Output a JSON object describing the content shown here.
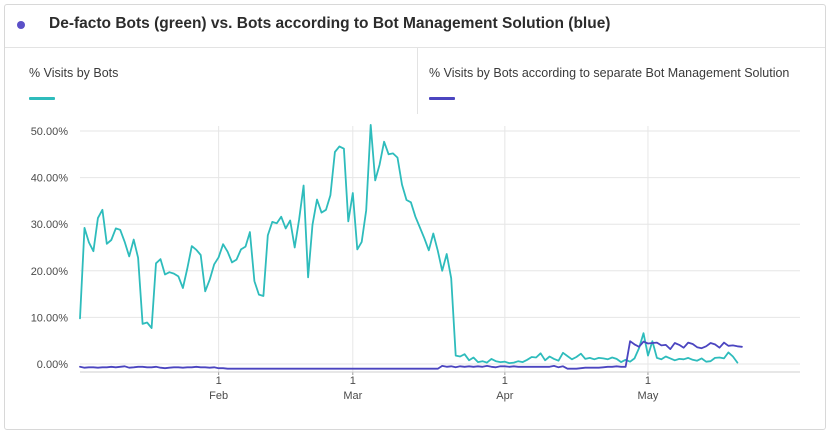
{
  "header": {
    "title": "De-facto Bots (green) vs. Bots according to Bot Management Solution (blue)",
    "dot_color": "#5b50c8"
  },
  "legend": [
    {
      "label": "% Visits by Bots",
      "color": "#2ebcbc"
    },
    {
      "label": "% Visits by Bots according to separate Bot Management Solution",
      "color": "#4b45c0"
    }
  ],
  "chart_data": {
    "type": "line",
    "y_ticks": [
      "50.00%",
      "40.00%",
      "30.00%",
      "20.00%",
      "10.00%",
      "0.00%"
    ],
    "y_tick_values": [
      50,
      40,
      30,
      20,
      10,
      0
    ],
    "ylim": [
      -1.5,
      52
    ],
    "x_range": [
      0,
      161
    ],
    "x_ticks": [
      {
        "x": 31,
        "day": "1",
        "month": "Feb"
      },
      {
        "x": 61,
        "day": "1",
        "month": "Mar"
      },
      {
        "x": 95,
        "day": "1",
        "month": "Apr"
      },
      {
        "x": 127,
        "day": "1",
        "month": "May"
      }
    ],
    "grid": true,
    "series": [
      {
        "name": "% Visits by Bots",
        "color": "#2ebcbc",
        "values": [
          9.8,
          29.2,
          26.1,
          24.2,
          31.3,
          33.1,
          25.8,
          26.6,
          29.1,
          28.8,
          26.2,
          23.1,
          26.7,
          22.8,
          8.6,
          8.9,
          7.7,
          21.6,
          22.5,
          19.2,
          19.7,
          19.4,
          18.8,
          16.3,
          20.5,
          25.3,
          24.5,
          23.4,
          15.6,
          18.1,
          21.4,
          22.9,
          25.7,
          24.1,
          21.8,
          22.4,
          24.6,
          25.2,
          28.3,
          17.8,
          14.9,
          14.6,
          27.6,
          30.5,
          30.2,
          31.6,
          29.1,
          30.8,
          25.0,
          31.0,
          38.3,
          18.6,
          29.9,
          35.3,
          32.5,
          33.1,
          36.2,
          45.5,
          46.7,
          46.2,
          30.6,
          36.7,
          24.6,
          26.2,
          33.0,
          51.3,
          39.4,
          42.8,
          47.7,
          45.0,
          45.2,
          44.3,
          38.5,
          35.2,
          34.7,
          31.6,
          29.3,
          27.0,
          24.4,
          28.0,
          24.3,
          20.0,
          23.6,
          18.4,
          1.8,
          1.6,
          2.1,
          0.8,
          1.4,
          0.4,
          0.6,
          0.3,
          1.1,
          0.6,
          0.4,
          0.5,
          0.2,
          0.3,
          0.6,
          0.4,
          0.9,
          1.5,
          1.4,
          2.3,
          0.8,
          1.6,
          1.1,
          0.7,
          2.4,
          1.7,
          1.0,
          1.5,
          2.2,
          1.1,
          1.3,
          1.0,
          1.3,
          1.2,
          1.0,
          1.4,
          1.1,
          0.4,
          0.9,
          0.5,
          1.2,
          3.4,
          6.6,
          1.8,
          4.9,
          1.3,
          1.0,
          1.6,
          1.2,
          0.8,
          1.1,
          1.0,
          1.3,
          0.9,
          0.7,
          1.2,
          0.5,
          0.6,
          1.3,
          1.4,
          1.2,
          2.5,
          1.6,
          0.3
        ],
        "x_start": 0
      },
      {
        "name": "% Visits by Bots according to separate Bot Management Solution",
        "color": "#4b45c0",
        "values": [
          -0.6,
          -0.8,
          -0.7,
          -0.7,
          -0.8,
          -0.7,
          -0.7,
          -0.6,
          -0.7,
          -0.6,
          -0.5,
          -0.8,
          -0.7,
          -0.6,
          -0.6,
          -0.7,
          -0.7,
          -0.6,
          -0.8,
          -0.9,
          -0.8,
          -0.7,
          -0.7,
          -0.8,
          -0.7,
          -0.7,
          -0.6,
          -0.7,
          -0.7,
          -0.8,
          -0.7,
          -0.9,
          -0.9,
          -1.0,
          -1.0,
          -1.0,
          -1.0,
          -1.0,
          -1.0,
          -1.0,
          -1.0,
          -1.0,
          -1.0,
          -1.0,
          -1.0,
          -1.0,
          -1.0,
          -1.0,
          -1.0,
          -1.0,
          -1.0,
          -1.0,
          -1.0,
          -1.0,
          -1.0,
          -1.0,
          -1.0,
          -1.0,
          -1.0,
          -1.0,
          -1.0,
          -1.0,
          -1.0,
          -1.0,
          -1.0,
          -1.0,
          -1.0,
          -1.0,
          -1.0,
          -1.0,
          -1.0,
          -1.0,
          -1.0,
          -1.0,
          -1.0,
          -1.0,
          -1.0,
          -1.0,
          -1.0,
          -1.0,
          -1.0,
          -0.4,
          -0.6,
          -0.5,
          -0.7,
          -0.5,
          -0.6,
          -0.5,
          -0.6,
          -0.5,
          -0.6,
          -0.4,
          -0.6,
          -0.7,
          -0.5,
          -0.5,
          -0.6,
          -0.5,
          -0.6,
          -0.6,
          -0.6,
          -0.6,
          -0.6,
          -0.6,
          -0.6,
          -0.6,
          -0.4,
          -0.7,
          -0.5,
          -1.0,
          -1.0,
          -1.0,
          -0.9,
          -0.8,
          -0.8,
          -0.8,
          -0.8,
          -0.7,
          -0.6,
          -0.6,
          -0.5,
          -0.6,
          -0.6,
          4.9,
          4.2,
          3.7,
          4.8,
          4.4,
          4.5,
          4.6,
          4.0,
          4.1,
          3.2,
          4.5,
          4.1,
          3.5,
          4.6,
          4.3,
          3.6,
          3.4,
          3.8,
          4.5,
          4.2,
          3.5,
          4.6,
          3.9,
          4.0,
          3.8,
          3.7
        ],
        "x_start": 0
      }
    ]
  }
}
